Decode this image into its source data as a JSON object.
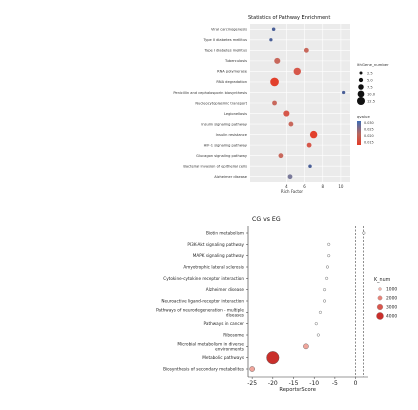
{
  "chart_data": [
    {
      "type": "scatter",
      "title": "Statistics of Pathway Enrichment",
      "xlabel": "Rich Factor",
      "ylabel": "",
      "xlim": [
        0,
        11
      ],
      "xticks": [
        4,
        6,
        8,
        10
      ],
      "grid": true,
      "categories": [
        "Viral carcinogenesis",
        "Type II diabetes mellitus",
        "Type I diabetes mellitus",
        "Tuberculosis",
        "RNA polymerase",
        "RNA degradation",
        "Penicillin and cephalosporin biosynthesis",
        "Nucleocytoplasmic transport",
        "Legionellosis",
        "Insulin signaling pathway",
        "Insulin resistance",
        "HIF-1 signaling pathway",
        "Glucagon signaling pathway",
        "Bacterial invasion of epithelial cells",
        "Alzheimer disease"
      ],
      "points": [
        {
          "pathway": "Viral carcinogenesis",
          "rich_factor": 2.6,
          "size": 2.5,
          "color": "#4a5f97"
        },
        {
          "pathway": "Type II diabetes mellitus",
          "rich_factor": 2.3,
          "size": 2.0,
          "color": "#4a5f97"
        },
        {
          "pathway": "Type I diabetes mellitus",
          "rich_factor": 6.2,
          "size": 5.0,
          "color": "#c8685c"
        },
        {
          "pathway": "Tuberculosis",
          "rich_factor": 3.0,
          "size": 7.5,
          "color": "#c8685c"
        },
        {
          "pathway": "RNA polymerase",
          "rich_factor": 5.2,
          "size": 10.0,
          "color": "#d6574a"
        },
        {
          "pathway": "RNA degradation",
          "rich_factor": 2.7,
          "size": 12.5,
          "color": "#e2402c"
        },
        {
          "pathway": "Penicillin and cephalosporin biosynthesis",
          "rich_factor": 10.3,
          "size": 2.0,
          "color": "#4a5f97"
        },
        {
          "pathway": "Nucleocytoplasmic transport",
          "rich_factor": 2.7,
          "size": 5.0,
          "color": "#c8685c"
        },
        {
          "pathway": "Legionellosis",
          "rich_factor": 4.0,
          "size": 7.5,
          "color": "#d6574a"
        },
        {
          "pathway": "Insulin signaling pathway",
          "rich_factor": 4.5,
          "size": 5.0,
          "color": "#c8685c"
        },
        {
          "pathway": "Insulin resistance",
          "rich_factor": 7.0,
          "size": 10.0,
          "color": "#e2402c"
        },
        {
          "pathway": "HIF-1 signaling pathway",
          "rich_factor": 6.5,
          "size": 5.0,
          "color": "#d6574a"
        },
        {
          "pathway": "Glucagon signaling pathway",
          "rich_factor": 3.4,
          "size": 5.0,
          "color": "#c8685c"
        },
        {
          "pathway": "Bacterial invasion of epithelial cells",
          "rich_factor": 6.6,
          "size": 2.5,
          "color": "#4a5f97"
        },
        {
          "pathway": "Alzheimer disease",
          "rich_factor": 4.4,
          "size": 5.0,
          "color": "#7a7a9a"
        }
      ],
      "size_legend": {
        "title": "lthGene_number",
        "values": [
          "2.5",
          "5.0",
          "7.5",
          "10.0",
          "12.5"
        ]
      },
      "color_legend": {
        "title": "qvalue",
        "labels": [
          "0.030",
          "0.025",
          "0.020",
          "0.015"
        ]
      }
    },
    {
      "type": "scatter",
      "title": "CG vs EG",
      "xlabel": "ReportsrScore",
      "ylabel": "",
      "xlim": [
        -26,
        3
      ],
      "xticks": [
        -25,
        -20,
        -15,
        -10,
        -5,
        0
      ],
      "reference_lines": [
        0,
        1.9
      ],
      "categories": [
        "Biotin metabolism",
        "PI3K-Akt signaling pathway",
        "MAPK signaling pathway",
        "Amyotrophic lateral sclerosis",
        "Cytokine-cytokine receptor interaction",
        "Alzheimer disease",
        "Neuroactive ligand-receptor interaction",
        "Pathways of neurodegeneration - multiple diseases",
        "Pathways in cancer",
        "Ribosome",
        "Microbial metabolism in diverse environments",
        "Metabolic pathways",
        "Biosynthesis of secondary metabolites"
      ],
      "points": [
        {
          "pathway": "Biotin metabolism",
          "score": 2.0,
          "k_num": 1.0
        },
        {
          "pathway": "PI3K-Akt signaling pathway",
          "score": -6.5,
          "k_num": 30
        },
        {
          "pathway": "MAPK signaling pathway",
          "score": -6.5,
          "k_num": 30
        },
        {
          "pathway": "Amyotrophic lateral sclerosis",
          "score": -6.8,
          "k_num": 40
        },
        {
          "pathway": "Cytokine-cytokine receptor interaction",
          "score": -7.0,
          "k_num": 30
        },
        {
          "pathway": "Alzheimer disease",
          "score": -7.5,
          "k_num": 40
        },
        {
          "pathway": "Neuroactive ligand-receptor interaction",
          "score": -7.5,
          "k_num": 40
        },
        {
          "pathway": "Pathways of neurodegeneration - multiple diseases",
          "score": -8.5,
          "k_num": 50
        },
        {
          "pathway": "Pathways in cancer",
          "score": -9.5,
          "k_num": 60
        },
        {
          "pathway": "Ribosome",
          "score": -9.0,
          "k_num": 60
        },
        {
          "pathway": "Microbial metabolism in diverse environments",
          "score": -12.0,
          "k_num": 400
        },
        {
          "pathway": "Metabolic pathways",
          "score": -20.0,
          "k_num": 4500
        },
        {
          "pathway": "Biosynthesis of secondary metabolites",
          "score": -25.0,
          "k_num": 900
        }
      ],
      "size_legend": {
        "title": "K_num",
        "values": [
          "1000",
          "2000",
          "3000",
          "4000"
        ],
        "colors": [
          "#f3b6ae",
          "#e88379",
          "#d9564d",
          "#c92f2b"
        ]
      }
    }
  ]
}
